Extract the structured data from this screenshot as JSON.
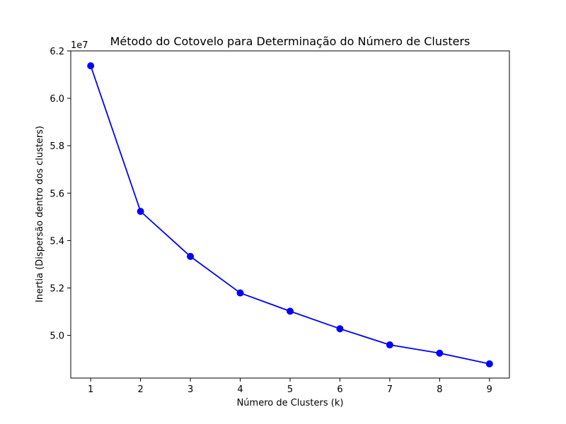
{
  "chart_data": {
    "type": "line",
    "title": "Método do Cotovelo para Determinação do Número de Clusters",
    "xlabel": "Número de Clusters (k)",
    "ylabel": "Inertia (Dispersão dentro dos clusters)",
    "y_offset_label": "1e7",
    "x": [
      1,
      2,
      3,
      4,
      5,
      6,
      7,
      8,
      9
    ],
    "series": [
      {
        "values": [
          6.137,
          5.523,
          5.333,
          5.179,
          5.102,
          5.028,
          4.96,
          4.925,
          4.88
        ],
        "color": "#0000ff",
        "marker": "circle"
      }
    ],
    "xlim": [
      0.6,
      9.4
    ],
    "ylim": [
      4.82,
      6.2
    ],
    "x_ticks": [
      "1",
      "2",
      "3",
      "4",
      "5",
      "6",
      "7",
      "8",
      "9"
    ],
    "y_ticks": [
      "5.0",
      "5.2",
      "5.4",
      "5.6",
      "5.8",
      "6.0",
      "6.2"
    ],
    "grid": false,
    "legend": false
  }
}
